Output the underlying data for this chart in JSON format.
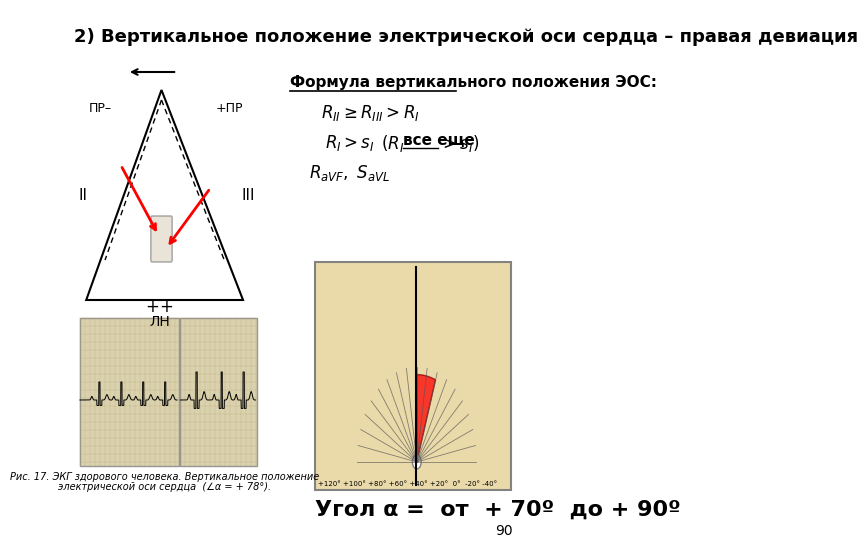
{
  "title": "2) Вертикальное положение электрической оси сердца – правая девиация",
  "title_fontsize": 13,
  "title_bold": true,
  "bg_color": "#ffffff",
  "formula_title": "Формула вертикального положения ЭОС:",
  "angle_text": "Угол α =  от  + 70º  до + 90º",
  "page_num": "90"
}
